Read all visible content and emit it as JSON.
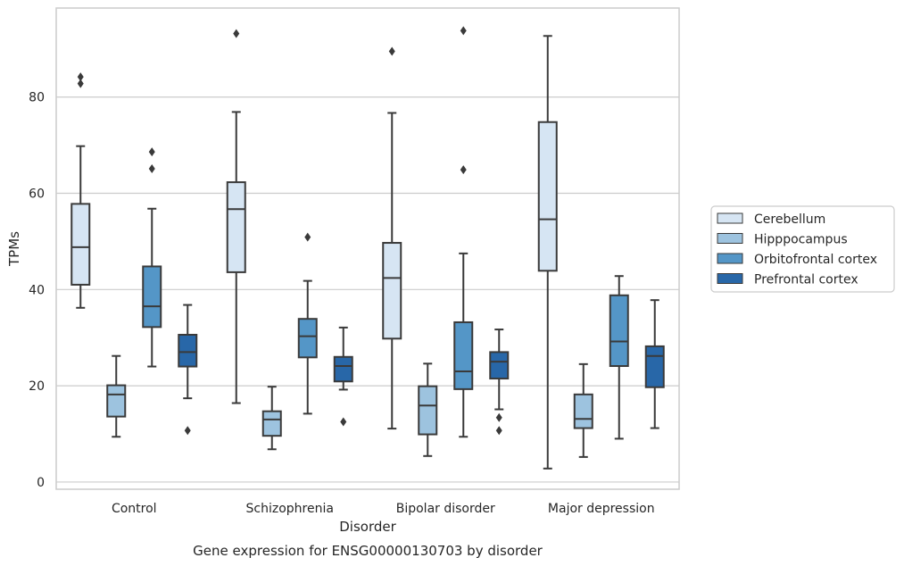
{
  "chart_data": {
    "type": "box",
    "xlabel": "Disorder",
    "ylabel": "TPMs",
    "caption": "Gene expression for ENSG00000130703 by disorder",
    "ylim": [
      -1.5,
      98.5
    ],
    "yticks": [
      0,
      20,
      40,
      60,
      80
    ],
    "grid": "horizontal",
    "legend_position": "center-right",
    "categories": [
      "Control",
      "Schizophrenia",
      "Bipolar disorder",
      "Major depression"
    ],
    "series": [
      {
        "name": "Cerebellum",
        "color": "#d6e5f3",
        "boxes": [
          {
            "whislo": 36.2,
            "q1": 41.0,
            "med": 48.8,
            "q3": 57.8,
            "whishi": 69.8,
            "fliers": [
              82.8,
              84.2
            ]
          },
          {
            "whislo": 16.4,
            "q1": 43.6,
            "med": 56.7,
            "q3": 62.3,
            "whishi": 76.9,
            "fliers": [
              93.2
            ]
          },
          {
            "whislo": 11.1,
            "q1": 29.8,
            "med": 42.4,
            "q3": 49.7,
            "whishi": 76.7,
            "fliers": [
              89.5
            ]
          },
          {
            "whislo": 2.8,
            "q1": 43.9,
            "med": 54.6,
            "q3": 74.8,
            "whishi": 92.7,
            "fliers": []
          }
        ]
      },
      {
        "name": "Hipppocampus",
        "color": "#9dc3df",
        "boxes": [
          {
            "whislo": 9.4,
            "q1": 13.6,
            "med": 18.2,
            "q3": 20.1,
            "whishi": 26.2,
            "fliers": []
          },
          {
            "whislo": 6.8,
            "q1": 9.6,
            "med": 13.0,
            "q3": 14.7,
            "whishi": 19.8,
            "fliers": []
          },
          {
            "whislo": 5.4,
            "q1": 9.9,
            "med": 15.9,
            "q3": 19.9,
            "whishi": 24.6,
            "fliers": []
          },
          {
            "whislo": 5.2,
            "q1": 11.2,
            "med": 13.1,
            "q3": 18.2,
            "whishi": 24.5,
            "fliers": []
          }
        ]
      },
      {
        "name": "Orbitofrontal cortex",
        "color": "#5496c7",
        "boxes": [
          {
            "whislo": 24.0,
            "q1": 32.2,
            "med": 36.5,
            "q3": 44.8,
            "whishi": 56.8,
            "fliers": [
              65.1,
              68.6
            ]
          },
          {
            "whislo": 14.2,
            "q1": 25.9,
            "med": 30.3,
            "q3": 33.9,
            "whishi": 41.8,
            "fliers": [
              50.9
            ]
          },
          {
            "whislo": 9.4,
            "q1": 19.3,
            "med": 23.0,
            "q3": 33.2,
            "whishi": 47.5,
            "fliers": [
              64.9,
              93.8
            ]
          },
          {
            "whislo": 9.0,
            "q1": 24.1,
            "med": 29.2,
            "q3": 38.8,
            "whishi": 42.8,
            "fliers": []
          }
        ]
      },
      {
        "name": "Prefrontal cortex",
        "color": "#2867a8",
        "boxes": [
          {
            "whislo": 17.4,
            "q1": 24.0,
            "med": 27.0,
            "q3": 30.6,
            "whishi": 36.8,
            "fliers": [
              10.7
            ]
          },
          {
            "whislo": 19.2,
            "q1": 20.9,
            "med": 24.1,
            "q3": 26.0,
            "whishi": 32.1,
            "fliers": [
              12.5
            ]
          },
          {
            "whislo": 15.1,
            "q1": 21.5,
            "med": 25.0,
            "q3": 27.0,
            "whishi": 31.7,
            "fliers": [
              13.4,
              10.7
            ]
          },
          {
            "whislo": 11.2,
            "q1": 19.7,
            "med": 26.2,
            "q3": 28.2,
            "whishi": 37.8,
            "fliers": []
          }
        ]
      }
    ]
  }
}
